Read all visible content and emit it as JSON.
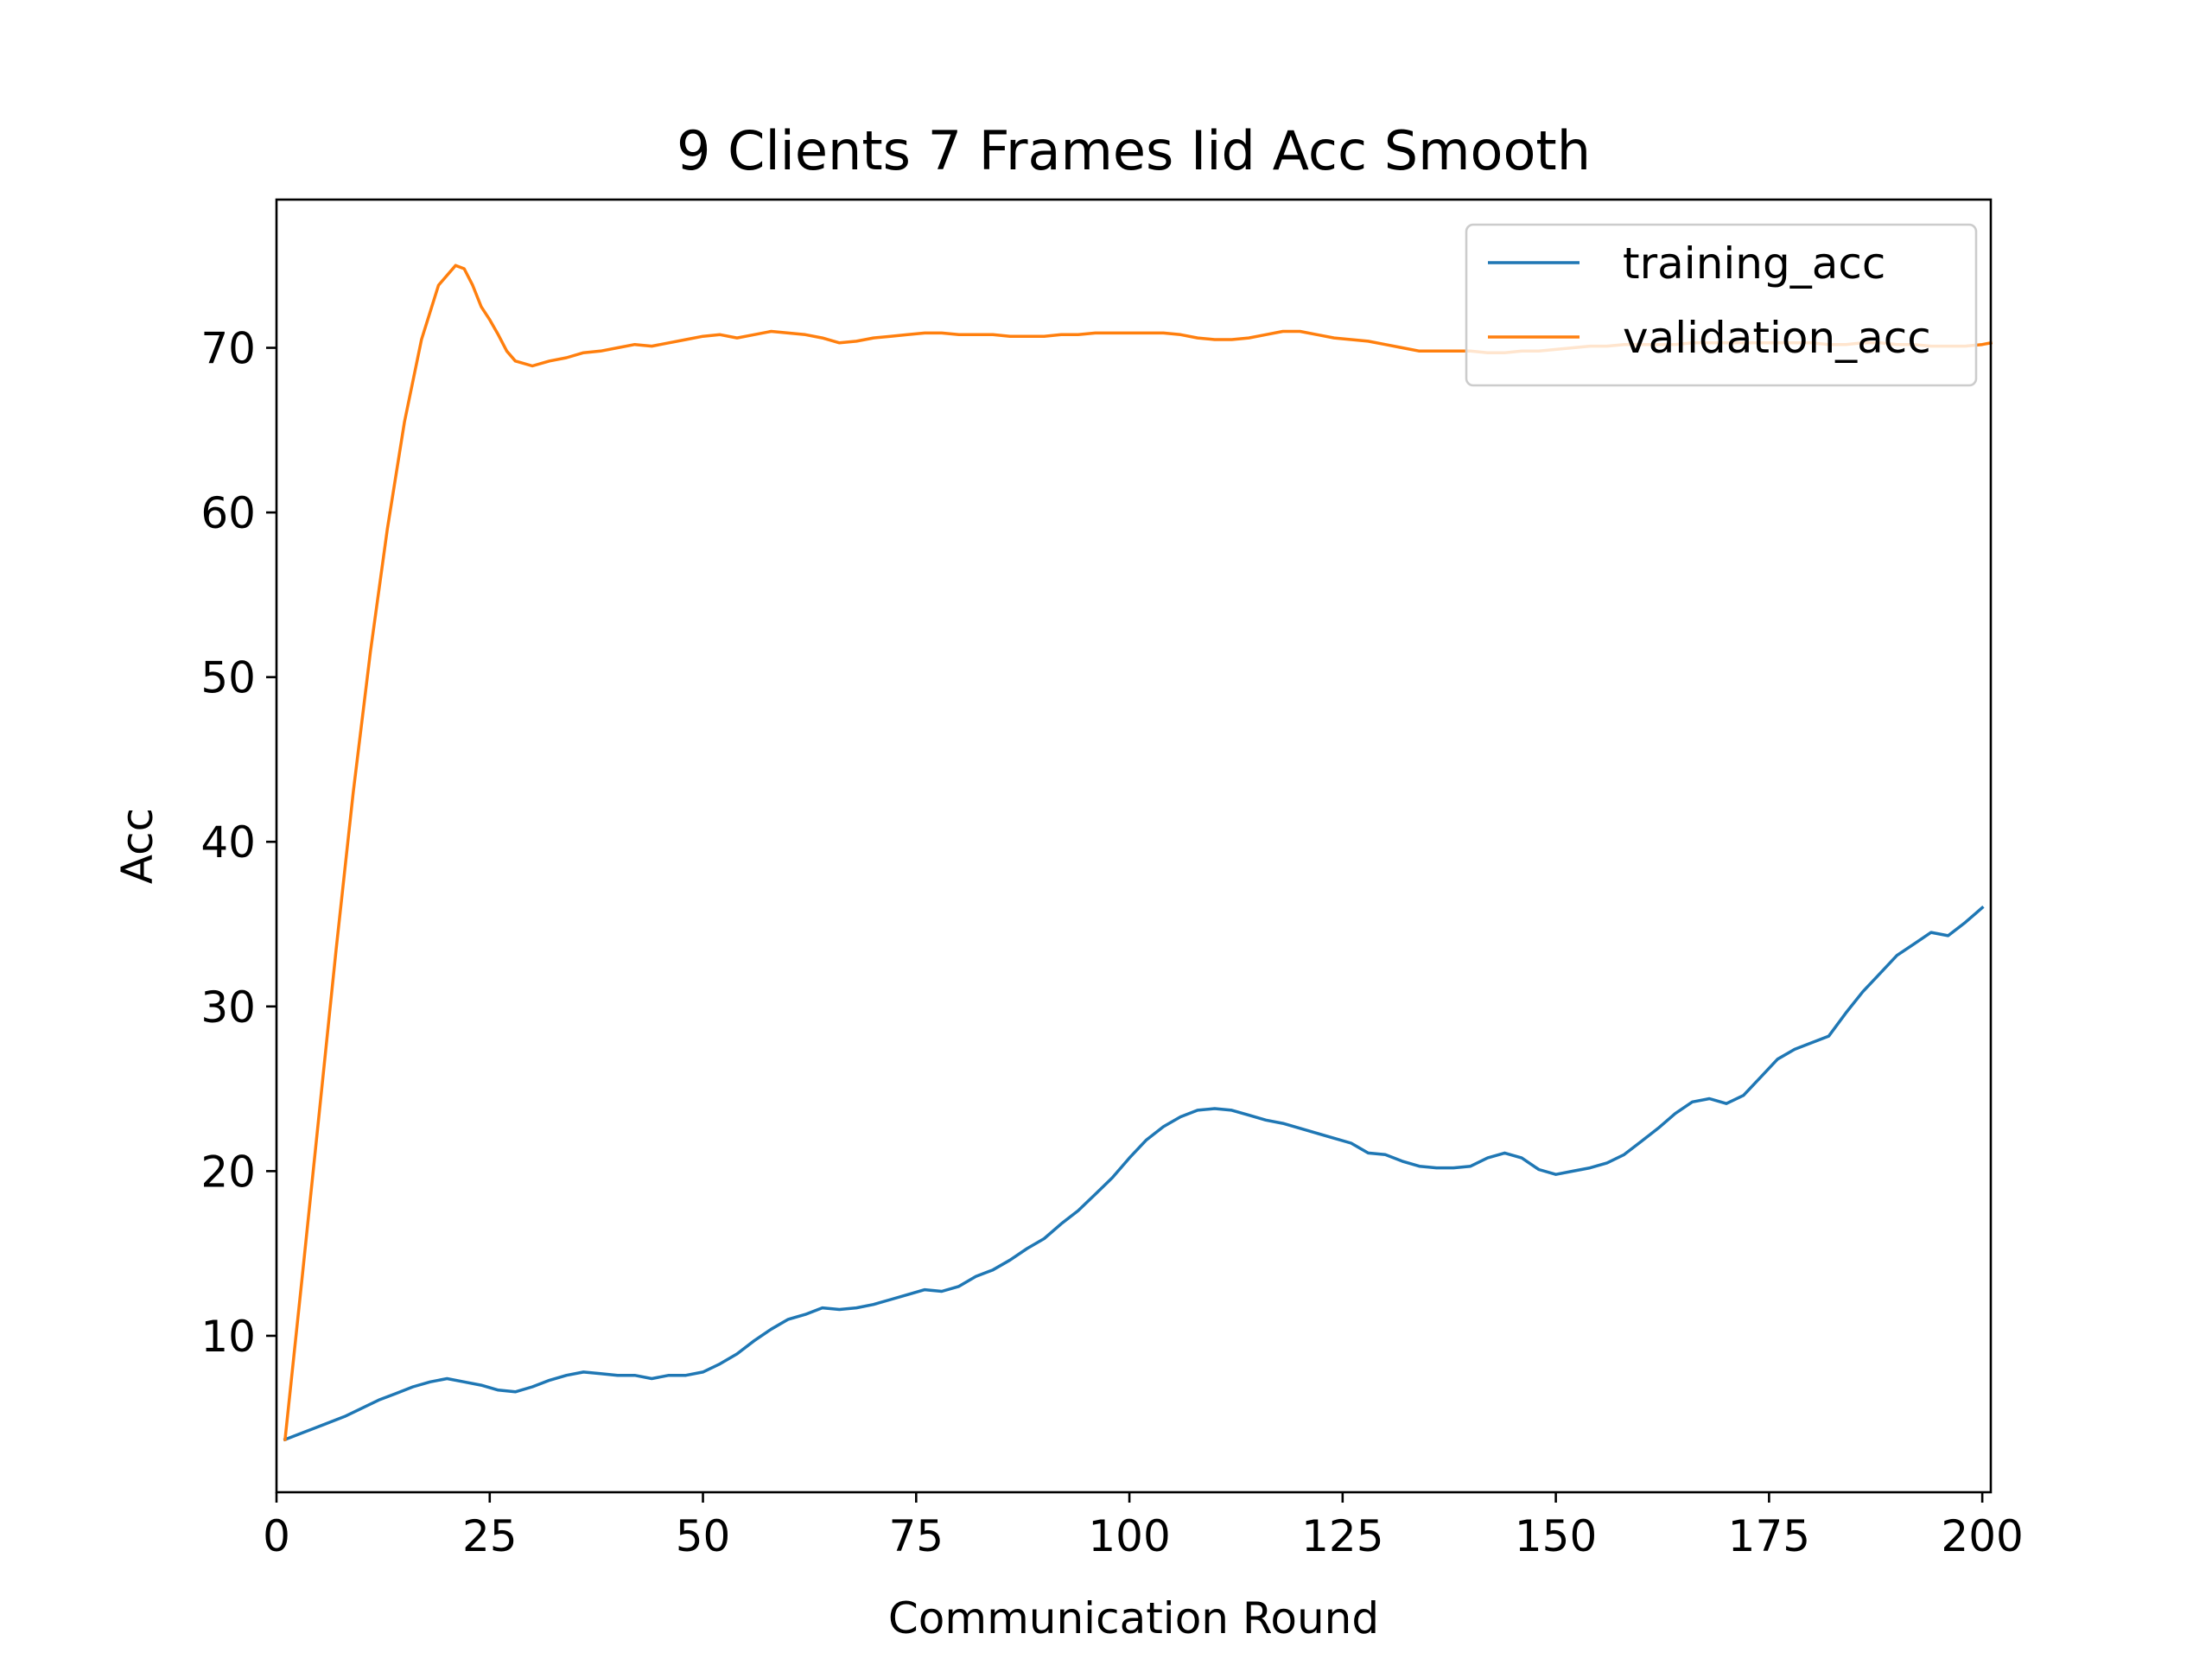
{
  "chart_data": {
    "type": "line",
    "title": "9 Clients 7 Frames Iid Acc Smooth",
    "xlabel": "Communication Round",
    "ylabel": "Acc",
    "xlim": [
      0,
      201
    ],
    "ylim": [
      0.5,
      79
    ],
    "xticks": [
      0,
      25,
      50,
      75,
      100,
      125,
      150,
      175,
      200
    ],
    "yticks": [
      10,
      20,
      30,
      40,
      50,
      60,
      70
    ],
    "grid": false,
    "legend_position": "top-right",
    "series": [
      {
        "name": "training_acc",
        "color": "#1f77b4",
        "points": [
          [
            1,
            3.7
          ],
          [
            3,
            4.1
          ],
          [
            5,
            4.5
          ],
          [
            8,
            5.1
          ],
          [
            10,
            5.6
          ],
          [
            12,
            6.1
          ],
          [
            14,
            6.5
          ],
          [
            16,
            6.9
          ],
          [
            18,
            7.2
          ],
          [
            20,
            7.4
          ],
          [
            22,
            7.2
          ],
          [
            24,
            7.0
          ],
          [
            26,
            6.7
          ],
          [
            28,
            6.6
          ],
          [
            30,
            6.9
          ],
          [
            32,
            7.3
          ],
          [
            34,
            7.6
          ],
          [
            36,
            7.8
          ],
          [
            38,
            7.7
          ],
          [
            40,
            7.6
          ],
          [
            42,
            7.6
          ],
          [
            44,
            7.4
          ],
          [
            46,
            7.6
          ],
          [
            48,
            7.6
          ],
          [
            50,
            7.8
          ],
          [
            52,
            8.3
          ],
          [
            54,
            8.9
          ],
          [
            56,
            9.7
          ],
          [
            58,
            10.4
          ],
          [
            60,
            11.0
          ],
          [
            62,
            11.3
          ],
          [
            64,
            11.7
          ],
          [
            66,
            11.6
          ],
          [
            68,
            11.7
          ],
          [
            70,
            11.9
          ],
          [
            72,
            12.2
          ],
          [
            74,
            12.5
          ],
          [
            76,
            12.8
          ],
          [
            78,
            12.7
          ],
          [
            80,
            13.0
          ],
          [
            82,
            13.6
          ],
          [
            84,
            14.0
          ],
          [
            86,
            14.6
          ],
          [
            88,
            15.3
          ],
          [
            90,
            15.9
          ],
          [
            92,
            16.8
          ],
          [
            94,
            17.6
          ],
          [
            96,
            18.6
          ],
          [
            98,
            19.6
          ],
          [
            100,
            20.8
          ],
          [
            102,
            21.9
          ],
          [
            104,
            22.7
          ],
          [
            106,
            23.3
          ],
          [
            108,
            23.7
          ],
          [
            110,
            23.8
          ],
          [
            112,
            23.7
          ],
          [
            114,
            23.4
          ],
          [
            116,
            23.1
          ],
          [
            118,
            22.9
          ],
          [
            120,
            22.6
          ],
          [
            122,
            22.3
          ],
          [
            124,
            22.0
          ],
          [
            126,
            21.7
          ],
          [
            128,
            21.1
          ],
          [
            130,
            21.0
          ],
          [
            132,
            20.6
          ],
          [
            134,
            20.3
          ],
          [
            136,
            20.2
          ],
          [
            138,
            20.2
          ],
          [
            140,
            20.3
          ],
          [
            142,
            20.8
          ],
          [
            144,
            21.1
          ],
          [
            146,
            20.8
          ],
          [
            148,
            20.1
          ],
          [
            150,
            19.8
          ],
          [
            152,
            20.0
          ],
          [
            154,
            20.2
          ],
          [
            156,
            20.5
          ],
          [
            158,
            21.0
          ],
          [
            160,
            21.8
          ],
          [
            162,
            22.6
          ],
          [
            164,
            23.5
          ],
          [
            166,
            24.2
          ],
          [
            168,
            24.4
          ],
          [
            170,
            24.1
          ],
          [
            172,
            24.6
          ],
          [
            174,
            25.7
          ],
          [
            176,
            26.8
          ],
          [
            178,
            27.4
          ],
          [
            180,
            27.8
          ],
          [
            182,
            28.2
          ],
          [
            184,
            29.6
          ],
          [
            186,
            30.9
          ],
          [
            188,
            32.0
          ],
          [
            190,
            33.1
          ],
          [
            192,
            33.8
          ],
          [
            194,
            34.5
          ],
          [
            196,
            34.3
          ],
          [
            198,
            35.1
          ],
          [
            200,
            36.0
          ]
        ]
      },
      {
        "name": "validation_acc",
        "color": "#ff7f0e",
        "points": [
          [
            1,
            3.7
          ],
          [
            3,
            13.5
          ],
          [
            5,
            23.5
          ],
          [
            7,
            33.5
          ],
          [
            9,
            43.0
          ],
          [
            11,
            51.5
          ],
          [
            13,
            59.0
          ],
          [
            15,
            65.5
          ],
          [
            17,
            70.5
          ],
          [
            19,
            73.8
          ],
          [
            21,
            75.0
          ],
          [
            22,
            74.8
          ],
          [
            23,
            73.8
          ],
          [
            24,
            72.5
          ],
          [
            25,
            71.7
          ],
          [
            26,
            70.8
          ],
          [
            27,
            69.8
          ],
          [
            28,
            69.2
          ],
          [
            30,
            68.9
          ],
          [
            32,
            69.2
          ],
          [
            34,
            69.4
          ],
          [
            36,
            69.7
          ],
          [
            38,
            69.8
          ],
          [
            40,
            70.0
          ],
          [
            42,
            70.2
          ],
          [
            44,
            70.1
          ],
          [
            46,
            70.3
          ],
          [
            48,
            70.5
          ],
          [
            50,
            70.7
          ],
          [
            52,
            70.8
          ],
          [
            54,
            70.6
          ],
          [
            56,
            70.8
          ],
          [
            58,
            71.0
          ],
          [
            60,
            70.9
          ],
          [
            62,
            70.8
          ],
          [
            64,
            70.6
          ],
          [
            66,
            70.3
          ],
          [
            68,
            70.4
          ],
          [
            70,
            70.6
          ],
          [
            72,
            70.7
          ],
          [
            74,
            70.8
          ],
          [
            76,
            70.9
          ],
          [
            78,
            70.9
          ],
          [
            80,
            70.8
          ],
          [
            82,
            70.8
          ],
          [
            84,
            70.8
          ],
          [
            86,
            70.7
          ],
          [
            88,
            70.7
          ],
          [
            90,
            70.7
          ],
          [
            92,
            70.8
          ],
          [
            94,
            70.8
          ],
          [
            96,
            70.9
          ],
          [
            98,
            70.9
          ],
          [
            100,
            70.9
          ],
          [
            102,
            70.9
          ],
          [
            104,
            70.9
          ],
          [
            106,
            70.8
          ],
          [
            108,
            70.6
          ],
          [
            110,
            70.5
          ],
          [
            112,
            70.5
          ],
          [
            114,
            70.6
          ],
          [
            116,
            70.8
          ],
          [
            118,
            71.0
          ],
          [
            120,
            71.0
          ],
          [
            122,
            70.8
          ],
          [
            124,
            70.6
          ],
          [
            126,
            70.5
          ],
          [
            128,
            70.4
          ],
          [
            130,
            70.2
          ],
          [
            132,
            70.0
          ],
          [
            134,
            69.8
          ],
          [
            136,
            69.8
          ],
          [
            138,
            69.8
          ],
          [
            140,
            69.8
          ],
          [
            142,
            69.7
          ],
          [
            144,
            69.7
          ],
          [
            146,
            69.8
          ],
          [
            148,
            69.8
          ],
          [
            150,
            69.9
          ],
          [
            152,
            70.0
          ],
          [
            154,
            70.1
          ],
          [
            156,
            70.1
          ],
          [
            158,
            70.2
          ],
          [
            160,
            70.2
          ],
          [
            162,
            70.2
          ],
          [
            164,
            70.2
          ],
          [
            166,
            70.3
          ],
          [
            168,
            70.3
          ],
          [
            170,
            70.3
          ],
          [
            172,
            70.3
          ],
          [
            174,
            70.3
          ],
          [
            176,
            70.3
          ],
          [
            178,
            70.3
          ],
          [
            180,
            70.3
          ],
          [
            182,
            70.2
          ],
          [
            184,
            70.2
          ],
          [
            186,
            70.3
          ],
          [
            188,
            70.3
          ],
          [
            190,
            70.2
          ],
          [
            192,
            70.2
          ],
          [
            194,
            70.1
          ],
          [
            196,
            70.1
          ],
          [
            198,
            70.1
          ],
          [
            200,
            70.2
          ],
          [
            201,
            70.3
          ]
        ]
      }
    ]
  }
}
